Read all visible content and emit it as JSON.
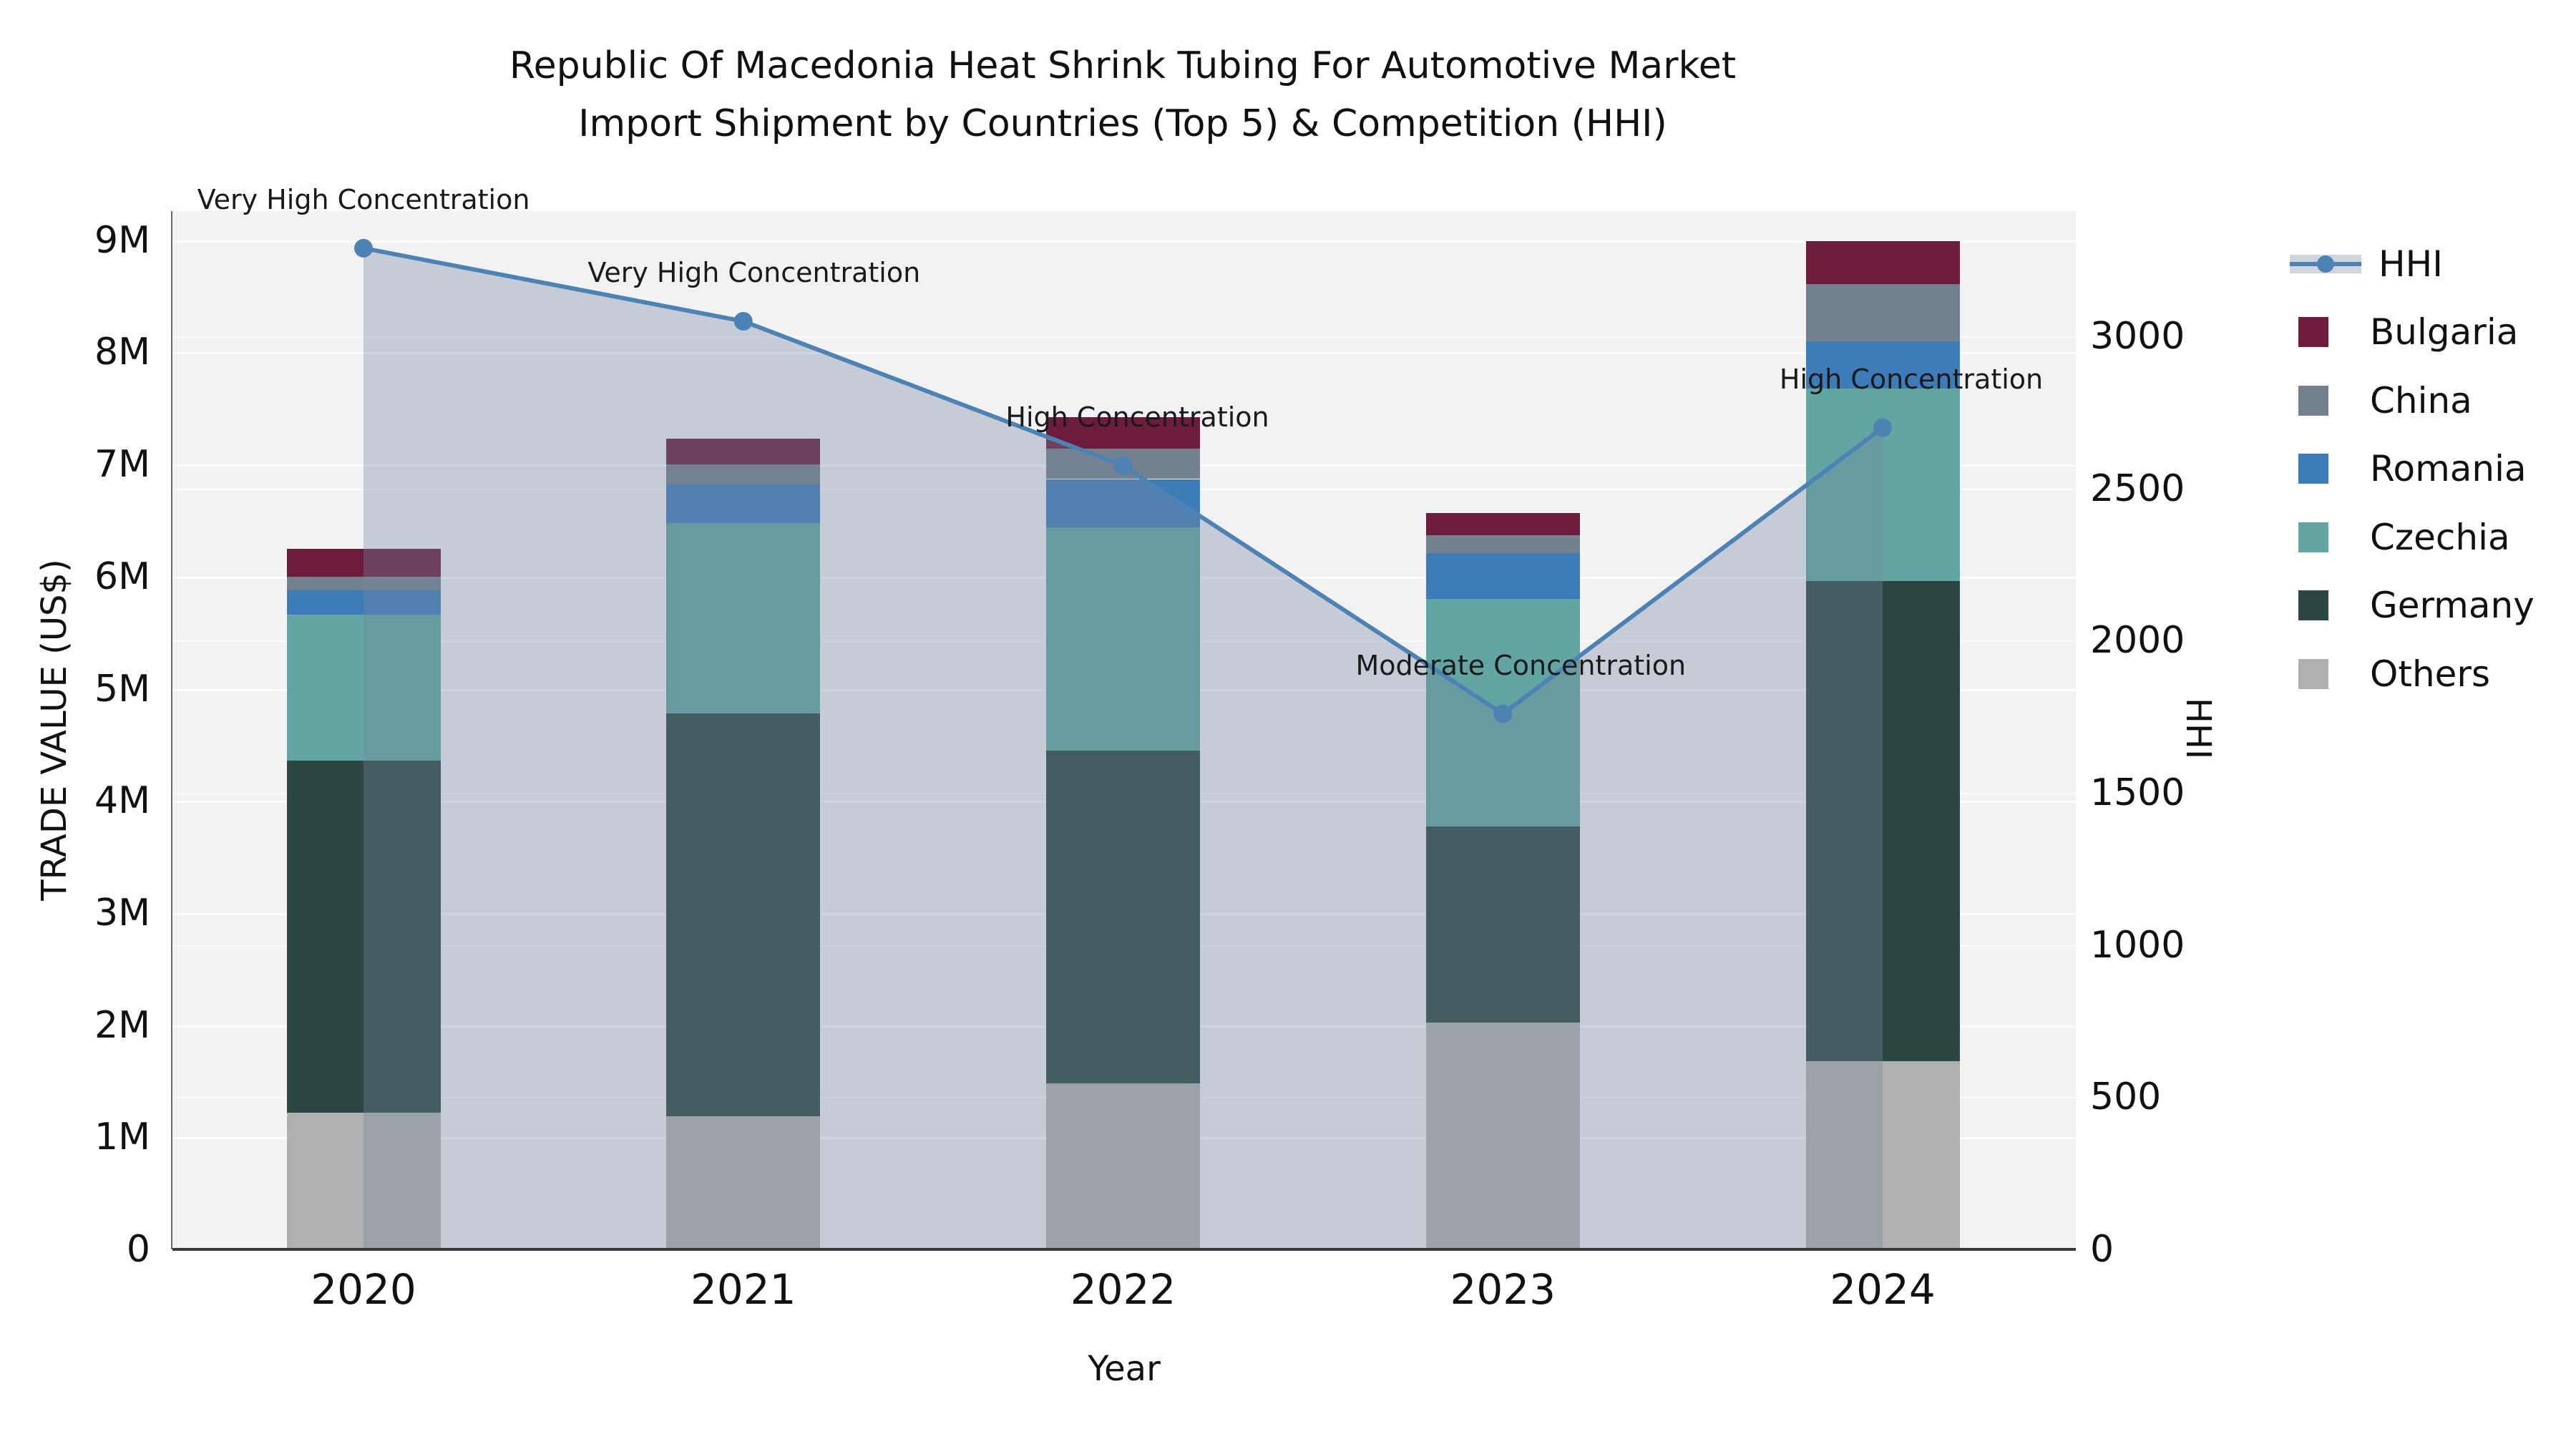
{
  "title": {
    "line1": "Republic Of Macedonia Heat Shrink Tubing For Automotive Market",
    "line2": "Import Shipment by Countries (Top 5) & Competition (HHI)"
  },
  "axes": {
    "x": {
      "title": "Year",
      "ticks": [
        "2020",
        "2021",
        "2022",
        "2023",
        "2024"
      ]
    },
    "y_left": {
      "title": "TRADE VALUE (US$)",
      "ticks": [
        "0",
        "1M",
        "2M",
        "3M",
        "4M",
        "5M",
        "6M",
        "7M",
        "8M",
        "9M"
      ]
    },
    "y_right": {
      "title": "HHI",
      "ticks": [
        "0",
        "500",
        "1000",
        "1500",
        "2000",
        "2500",
        "3000"
      ]
    }
  },
  "colors": {
    "plot_background": "#f2f2f3",
    "page_background": "#ffffff",
    "hhi_line": "#4d82b4",
    "hhi_area_fill": "rgba(117,134,160,0.35)",
    "grid": "#ffffff",
    "text": "#111111"
  },
  "chart_data": {
    "type": "bar",
    "subtype": "stacked-bars-with-hhi-line",
    "title": "Republic Of Macedonia Heat Shrink Tubing For Automotive Market Import Shipment by Countries (Top 5) & Competition (HHI)",
    "xlabel": "Year",
    "ylabel_left": "TRADE VALUE (US$)",
    "ylabel_right": "HHI",
    "categories": [
      "2020",
      "2021",
      "2022",
      "2023",
      "2024"
    ],
    "bar_unit": "US$ millions",
    "ylim_left_musd": [
      0,
      9.26
    ],
    "ylim_right_hhi": [
      0,
      3412
    ],
    "grid": true,
    "legend_position": "right-outside",
    "series": [
      {
        "name": "Bulgaria",
        "color": "#6d1c3c",
        "values": [
          0.25,
          0.23,
          0.28,
          0.2,
          0.38
        ]
      },
      {
        "name": "China",
        "color": "#73808e",
        "values": [
          0.12,
          0.18,
          0.27,
          0.16,
          0.51
        ]
      },
      {
        "name": "Romania",
        "color": "#3c7cb8",
        "values": [
          0.22,
          0.34,
          0.43,
          0.41,
          0.42
        ]
      },
      {
        "name": "Czechia",
        "color": "#62a5a3",
        "values": [
          1.3,
          1.7,
          1.99,
          2.03,
          1.72
        ]
      },
      {
        "name": "Germany",
        "color": "#2a4743",
        "values": [
          3.14,
          3.59,
          2.97,
          1.75,
          4.28
        ]
      },
      {
        "name": "Others",
        "color": "#aeb1af",
        "values": [
          1.22,
          1.19,
          1.48,
          2.02,
          1.68
        ]
      }
    ],
    "stack_order_bottom_to_top": [
      "Others",
      "Germany",
      "Czechia",
      "Romania",
      "China",
      "Bulgaria"
    ],
    "line": {
      "name": "HHI",
      "axis": "right",
      "values": [
        3290,
        3050,
        2575,
        1760,
        2700
      ],
      "annotations": [
        {
          "text": "Very High Concentration",
          "dx": 0
        },
        {
          "text": "Very High Concentration",
          "dx": 15
        },
        {
          "text": "High Concentration",
          "dx": 20
        },
        {
          "text": "Moderate Concentration",
          "dx": 25
        },
        {
          "text": "High Concentration",
          "dx": 40
        }
      ]
    },
    "legend_entries": [
      "HHI",
      "Bulgaria",
      "China",
      "Romania",
      "Czechia",
      "Germany",
      "Others"
    ]
  }
}
